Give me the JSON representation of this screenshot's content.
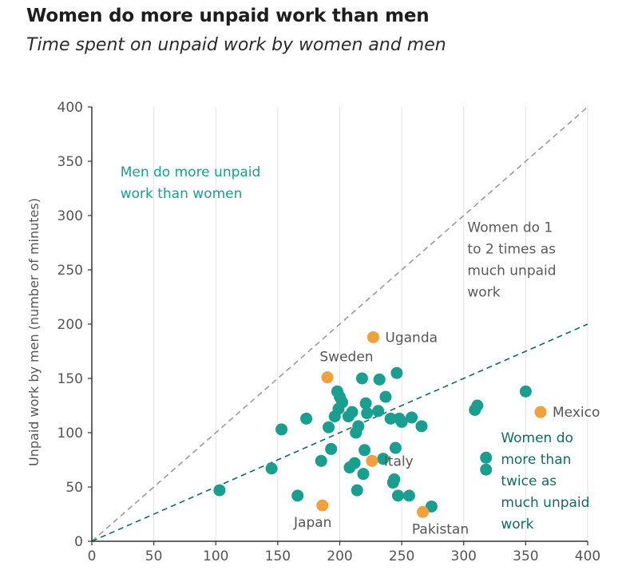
{
  "title": "Women do more unpaid work than men",
  "subtitle": "Time spent on unpaid work by women and men",
  "chart_data": {
    "type": "scatter",
    "title": "Women do more unpaid work than men",
    "subtitle": "Time spent on unpaid work by women and men",
    "xlabel": "",
    "ylabel": "Unpaid work by men (number of minutes)",
    "xlim": [
      0,
      400
    ],
    "ylim": [
      0,
      400
    ],
    "xticks": [
      0,
      50,
      100,
      150,
      200,
      250,
      300,
      350,
      400
    ],
    "yticks": [
      0,
      50,
      100,
      150,
      200,
      250,
      300,
      350,
      400
    ],
    "grid": "vertical",
    "colors": {
      "teal": "#1a9e8f",
      "orange": "#f2a03d",
      "teal_dark": "#146b5f",
      "gray_line": "#9a9a9a"
    },
    "reference_lines": [
      {
        "slope": 1,
        "style": "dashed",
        "color": "#9a9a9a"
      },
      {
        "slope": 0.5,
        "style": "dashed",
        "color": "#146b5f"
      }
    ],
    "annotations": [
      {
        "text_lines": [
          "Men do more unpaid",
          "work than women"
        ],
        "x": 23,
        "y": 336,
        "color": "#1a9e8f"
      },
      {
        "text_lines": [
          "Women do 1",
          "to 2 times as",
          "much unpaid",
          "work"
        ],
        "x": 303,
        "y": 285,
        "color": "#5a5a5a"
      },
      {
        "text_lines": [
          "Women do",
          "more than",
          "twice as",
          "much unpaid",
          "work"
        ],
        "x": 330,
        "y": 91,
        "color": "#146b5f"
      }
    ],
    "highlighted": [
      {
        "label": "Uganda",
        "x": 227,
        "y": 188,
        "label_pos": "right"
      },
      {
        "label": "Sweden",
        "x": 190,
        "y": 151,
        "label_pos": "above"
      },
      {
        "label": "Mexico",
        "x": 362,
        "y": 119,
        "label_pos": "right"
      },
      {
        "label": "Italy",
        "x": 226,
        "y": 74,
        "label_pos": "right"
      },
      {
        "label": "Japan",
        "x": 186,
        "y": 33,
        "label_pos": "below"
      },
      {
        "label": "Pakistan",
        "x": 267,
        "y": 27,
        "label_pos": "below"
      }
    ],
    "points": [
      {
        "x": 103,
        "y": 47
      },
      {
        "x": 145,
        "y": 67
      },
      {
        "x": 153,
        "y": 103
      },
      {
        "x": 166,
        "y": 42
      },
      {
        "x": 173,
        "y": 113
      },
      {
        "x": 185,
        "y": 74
      },
      {
        "x": 191,
        "y": 105
      },
      {
        "x": 193,
        "y": 85
      },
      {
        "x": 196,
        "y": 115
      },
      {
        "x": 198,
        "y": 138
      },
      {
        "x": 199,
        "y": 122
      },
      {
        "x": 200,
        "y": 133
      },
      {
        "x": 202,
        "y": 128
      },
      {
        "x": 207,
        "y": 115
      },
      {
        "x": 208,
        "y": 68
      },
      {
        "x": 210,
        "y": 119
      },
      {
        "x": 212,
        "y": 72
      },
      {
        "x": 213,
        "y": 100
      },
      {
        "x": 214,
        "y": 47
      },
      {
        "x": 215,
        "y": 106
      },
      {
        "x": 218,
        "y": 150
      },
      {
        "x": 219,
        "y": 62
      },
      {
        "x": 220,
        "y": 84
      },
      {
        "x": 221,
        "y": 127
      },
      {
        "x": 222,
        "y": 118
      },
      {
        "x": 231,
        "y": 120
      },
      {
        "x": 232,
        "y": 149
      },
      {
        "x": 235,
        "y": 76
      },
      {
        "x": 237,
        "y": 133
      },
      {
        "x": 241,
        "y": 113
      },
      {
        "x": 243,
        "y": 54
      },
      {
        "x": 244,
        "y": 57
      },
      {
        "x": 245,
        "y": 86
      },
      {
        "x": 246,
        "y": 155
      },
      {
        "x": 247,
        "y": 42
      },
      {
        "x": 248,
        "y": 113
      },
      {
        "x": 250,
        "y": 110
      },
      {
        "x": 256,
        "y": 42
      },
      {
        "x": 258,
        "y": 114
      },
      {
        "x": 266,
        "y": 106
      },
      {
        "x": 274,
        "y": 32
      },
      {
        "x": 309,
        "y": 121
      },
      {
        "x": 311,
        "y": 125
      },
      {
        "x": 318,
        "y": 77
      },
      {
        "x": 318,
        "y": 66
      },
      {
        "x": 350,
        "y": 138
      }
    ]
  }
}
